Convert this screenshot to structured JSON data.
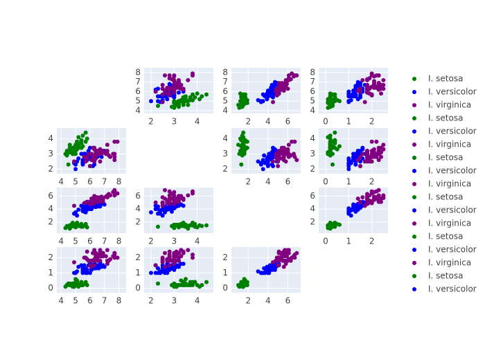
{
  "chart_data": {
    "type": "scatter_matrix",
    "dimensions": [
      {
        "lim": [
          3.7,
          8.5
        ],
        "ticks": [
          4,
          5,
          6,
          7,
          8
        ]
      },
      {
        "lim": [
          1.7,
          4.7
        ],
        "ticks": [
          2,
          3,
          4
        ]
      },
      {
        "lim": [
          0.3,
          7.3
        ],
        "ticks": [
          2,
          4,
          6
        ]
      },
      {
        "lim": [
          -0.3,
          2.7
        ],
        "ticks": [
          0,
          1,
          2
        ]
      }
    ],
    "grid": true,
    "series": [
      {
        "name": "I. setosa",
        "color": "#008000",
        "values": [
          [
            5.1,
            3.5,
            1.4,
            0.2
          ],
          [
            4.9,
            3.0,
            1.4,
            0.2
          ],
          [
            4.7,
            3.2,
            1.3,
            0.2
          ],
          [
            4.6,
            3.1,
            1.5,
            0.2
          ],
          [
            5.0,
            3.6,
            1.4,
            0.2
          ],
          [
            5.4,
            3.9,
            1.7,
            0.4
          ],
          [
            4.6,
            3.4,
            1.4,
            0.3
          ],
          [
            5.0,
            3.4,
            1.5,
            0.2
          ],
          [
            4.4,
            2.9,
            1.4,
            0.2
          ],
          [
            4.9,
            3.1,
            1.5,
            0.1
          ],
          [
            5.4,
            3.7,
            1.5,
            0.2
          ],
          [
            4.8,
            3.4,
            1.6,
            0.2
          ],
          [
            4.8,
            3.0,
            1.4,
            0.1
          ],
          [
            4.3,
            3.0,
            1.1,
            0.1
          ],
          [
            5.8,
            4.0,
            1.2,
            0.2
          ],
          [
            5.7,
            4.4,
            1.5,
            0.4
          ],
          [
            5.4,
            3.9,
            1.3,
            0.4
          ],
          [
            5.1,
            3.5,
            1.4,
            0.3
          ],
          [
            5.7,
            3.8,
            1.7,
            0.3
          ],
          [
            5.1,
            3.8,
            1.5,
            0.3
          ],
          [
            5.4,
            3.4,
            1.7,
            0.2
          ],
          [
            5.1,
            3.7,
            1.5,
            0.4
          ],
          [
            4.6,
            3.6,
            1.0,
            0.2
          ],
          [
            5.1,
            3.3,
            1.7,
            0.5
          ],
          [
            4.8,
            3.4,
            1.9,
            0.2
          ],
          [
            5.0,
            3.0,
            1.6,
            0.2
          ],
          [
            5.0,
            3.4,
            1.6,
            0.4
          ],
          [
            5.2,
            3.5,
            1.5,
            0.2
          ],
          [
            5.2,
            3.4,
            1.4,
            0.2
          ],
          [
            4.7,
            3.2,
            1.6,
            0.2
          ],
          [
            4.8,
            3.1,
            1.6,
            0.2
          ],
          [
            5.4,
            3.4,
            1.5,
            0.4
          ],
          [
            5.2,
            4.1,
            1.5,
            0.1
          ],
          [
            5.5,
            4.2,
            1.4,
            0.2
          ],
          [
            4.9,
            3.1,
            1.5,
            0.1
          ],
          [
            5.0,
            3.2,
            1.2,
            0.2
          ],
          [
            5.5,
            3.5,
            1.3,
            0.2
          ],
          [
            4.9,
            3.1,
            1.5,
            0.1
          ],
          [
            4.4,
            3.0,
            1.3,
            0.2
          ],
          [
            5.1,
            3.4,
            1.5,
            0.2
          ],
          [
            5.0,
            3.5,
            1.3,
            0.3
          ],
          [
            4.5,
            2.3,
            1.3,
            0.3
          ],
          [
            4.4,
            3.2,
            1.3,
            0.2
          ],
          [
            5.0,
            3.5,
            1.6,
            0.6
          ],
          [
            5.1,
            3.8,
            1.9,
            0.4
          ],
          [
            4.8,
            3.0,
            1.4,
            0.3
          ],
          [
            5.1,
            3.8,
            1.6,
            0.2
          ],
          [
            4.6,
            3.2,
            1.4,
            0.2
          ],
          [
            5.3,
            3.7,
            1.5,
            0.2
          ],
          [
            5.0,
            3.3,
            1.4,
            0.2
          ]
        ]
      },
      {
        "name": "I. versicolor",
        "color": "#0000ff",
        "values": [
          [
            7.0,
            3.2,
            4.7,
            1.4
          ],
          [
            6.4,
            3.2,
            4.5,
            1.5
          ],
          [
            6.9,
            3.1,
            4.9,
            1.5
          ],
          [
            5.5,
            2.3,
            4.0,
            1.3
          ],
          [
            6.5,
            2.8,
            4.6,
            1.5
          ],
          [
            5.7,
            2.8,
            4.5,
            1.3
          ],
          [
            6.3,
            3.3,
            4.7,
            1.6
          ],
          [
            4.9,
            2.4,
            3.3,
            1.0
          ],
          [
            6.6,
            2.9,
            4.6,
            1.3
          ],
          [
            5.2,
            2.7,
            3.9,
            1.4
          ],
          [
            5.0,
            2.0,
            3.5,
            1.0
          ],
          [
            5.9,
            3.0,
            4.2,
            1.5
          ],
          [
            6.0,
            2.2,
            4.0,
            1.0
          ],
          [
            6.1,
            2.9,
            4.7,
            1.4
          ],
          [
            5.6,
            2.9,
            3.6,
            1.3
          ],
          [
            6.7,
            3.1,
            4.4,
            1.4
          ],
          [
            5.6,
            3.0,
            4.5,
            1.5
          ],
          [
            5.8,
            2.7,
            4.1,
            1.0
          ],
          [
            6.2,
            2.2,
            4.5,
            1.5
          ],
          [
            5.6,
            2.5,
            3.9,
            1.1
          ],
          [
            5.9,
            3.2,
            4.8,
            1.8
          ],
          [
            6.1,
            2.8,
            4.0,
            1.3
          ],
          [
            6.3,
            2.5,
            4.9,
            1.5
          ],
          [
            6.1,
            2.8,
            4.7,
            1.2
          ],
          [
            6.4,
            2.9,
            4.3,
            1.3
          ],
          [
            6.6,
            3.0,
            4.4,
            1.4
          ],
          [
            6.8,
            2.8,
            4.8,
            1.4
          ],
          [
            6.7,
            3.0,
            5.0,
            1.7
          ],
          [
            6.0,
            2.9,
            4.5,
            1.5
          ],
          [
            5.7,
            2.6,
            3.5,
            1.0
          ],
          [
            5.5,
            2.4,
            3.8,
            1.1
          ],
          [
            5.5,
            2.4,
            3.7,
            1.0
          ],
          [
            5.8,
            2.7,
            3.9,
            1.2
          ],
          [
            6.0,
            2.7,
            5.1,
            1.6
          ],
          [
            5.4,
            3.0,
            4.5,
            1.5
          ],
          [
            6.0,
            3.4,
            4.5,
            1.6
          ],
          [
            6.7,
            3.1,
            4.7,
            1.5
          ],
          [
            6.3,
            2.3,
            4.4,
            1.3
          ],
          [
            5.6,
            3.0,
            4.1,
            1.3
          ],
          [
            5.5,
            2.5,
            4.0,
            1.3
          ],
          [
            5.5,
            2.6,
            4.4,
            1.2
          ],
          [
            6.1,
            3.0,
            4.6,
            1.4
          ],
          [
            5.8,
            2.6,
            4.0,
            1.2
          ],
          [
            5.0,
            2.3,
            3.3,
            1.0
          ],
          [
            5.6,
            2.7,
            4.2,
            1.3
          ],
          [
            5.7,
            3.0,
            4.2,
            1.2
          ],
          [
            5.7,
            2.9,
            4.2,
            1.3
          ],
          [
            6.2,
            2.9,
            4.3,
            1.3
          ],
          [
            5.1,
            2.5,
            3.0,
            1.1
          ],
          [
            5.7,
            2.8,
            4.1,
            1.3
          ]
        ]
      },
      {
        "name": "I. virginica",
        "color": "#800080",
        "values": [
          [
            6.3,
            3.3,
            6.0,
            2.5
          ],
          [
            5.8,
            2.7,
            5.1,
            1.9
          ],
          [
            7.1,
            3.0,
            5.9,
            2.1
          ],
          [
            6.3,
            2.9,
            5.6,
            1.8
          ],
          [
            6.5,
            3.0,
            5.8,
            2.2
          ],
          [
            7.6,
            3.0,
            6.6,
            2.1
          ],
          [
            4.9,
            2.5,
            4.5,
            1.7
          ],
          [
            7.3,
            2.9,
            6.3,
            1.8
          ],
          [
            6.7,
            2.5,
            5.8,
            1.8
          ],
          [
            7.2,
            3.6,
            6.1,
            2.5
          ],
          [
            6.5,
            3.2,
            5.1,
            2.0
          ],
          [
            6.4,
            2.7,
            5.3,
            1.9
          ],
          [
            6.8,
            3.0,
            5.5,
            2.1
          ],
          [
            5.7,
            2.5,
            5.0,
            2.0
          ],
          [
            5.8,
            2.8,
            5.1,
            2.4
          ],
          [
            6.4,
            3.2,
            5.3,
            2.3
          ],
          [
            6.5,
            3.0,
            5.5,
            1.8
          ],
          [
            7.7,
            3.8,
            6.7,
            2.2
          ],
          [
            7.7,
            2.6,
            6.9,
            2.3
          ],
          [
            6.0,
            2.2,
            5.0,
            1.5
          ],
          [
            6.9,
            3.2,
            5.7,
            2.3
          ],
          [
            5.6,
            2.8,
            4.9,
            2.0
          ],
          [
            7.7,
            2.8,
            6.7,
            2.0
          ],
          [
            6.3,
            2.7,
            4.9,
            1.8
          ],
          [
            6.7,
            3.3,
            5.7,
            2.1
          ],
          [
            7.2,
            3.2,
            6.0,
            1.8
          ],
          [
            6.2,
            2.8,
            4.8,
            1.8
          ],
          [
            6.1,
            3.0,
            4.9,
            1.8
          ],
          [
            6.4,
            2.8,
            5.6,
            2.1
          ],
          [
            7.2,
            3.0,
            5.8,
            1.6
          ],
          [
            7.4,
            2.8,
            6.1,
            1.9
          ],
          [
            7.9,
            3.8,
            6.4,
            2.0
          ],
          [
            6.4,
            2.8,
            5.6,
            2.2
          ],
          [
            6.3,
            2.8,
            5.1,
            1.5
          ],
          [
            6.1,
            2.6,
            5.6,
            1.4
          ],
          [
            7.7,
            3.0,
            6.1,
            2.3
          ],
          [
            6.3,
            3.4,
            5.6,
            2.4
          ],
          [
            6.4,
            3.1,
            5.5,
            1.8
          ],
          [
            6.0,
            3.0,
            4.8,
            1.8
          ],
          [
            6.9,
            3.1,
            5.4,
            2.1
          ],
          [
            6.7,
            3.1,
            5.6,
            2.4
          ],
          [
            6.9,
            3.1,
            5.1,
            2.3
          ],
          [
            5.8,
            2.7,
            5.1,
            1.9
          ],
          [
            6.8,
            3.2,
            5.9,
            2.3
          ],
          [
            6.7,
            3.3,
            5.7,
            2.5
          ],
          [
            6.7,
            3.0,
            5.2,
            2.3
          ],
          [
            6.3,
            2.5,
            5.0,
            1.9
          ],
          [
            6.5,
            3.0,
            5.2,
            2.0
          ],
          [
            6.2,
            3.4,
            5.4,
            2.3
          ],
          [
            5.9,
            3.0,
            5.1,
            1.8
          ]
        ]
      }
    ]
  }
}
